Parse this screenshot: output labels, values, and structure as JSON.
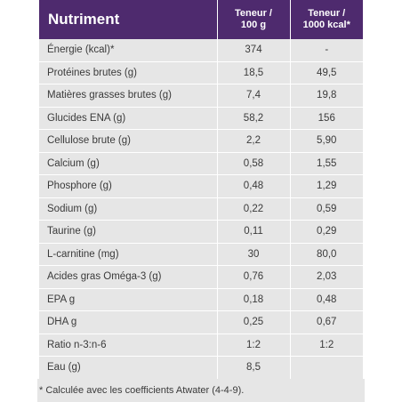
{
  "table": {
    "headers": {
      "nutrient": "Nutriment",
      "per100g_line1": "Teneur /",
      "per100g_line2": "100 g",
      "per1000_line1": "Teneur /",
      "per1000_line2": "1000 kcal*"
    },
    "rows": [
      {
        "name": "Énergie (kcal)*",
        "per100g": "374",
        "per1000kcal": "-"
      },
      {
        "name": "Protéines brutes (g)",
        "per100g": "18,5",
        "per1000kcal": "49,5"
      },
      {
        "name": "Matières grasses brutes (g)",
        "per100g": "7,4",
        "per1000kcal": "19,8"
      },
      {
        "name": "Glucides ENA (g)",
        "per100g": "58,2",
        "per1000kcal": "156"
      },
      {
        "name": "Cellulose brute (g)",
        "per100g": "2,2",
        "per1000kcal": "5,90"
      },
      {
        "name": "Calcium (g)",
        "per100g": "0,58",
        "per1000kcal": "1,55"
      },
      {
        "name": "Phosphore (g)",
        "per100g": "0,48",
        "per1000kcal": "1,29"
      },
      {
        "name": "Sodium (g)",
        "per100g": "0,22",
        "per1000kcal": "0,59"
      },
      {
        "name": "Taurine (g)",
        "per100g": "0,11",
        "per1000kcal": "0,29"
      },
      {
        "name": "L-carnitine (mg)",
        "per100g": "30",
        "per1000kcal": "80,0"
      },
      {
        "name": "Acides gras Oméga-3 (g)",
        "per100g": "0,76",
        "per1000kcal": "2,03"
      },
      {
        "name": "EPA  g",
        "per100g": "0,18",
        "per1000kcal": "0,48"
      },
      {
        "name": "DHA  g",
        "per100g": "0,25",
        "per1000kcal": "0,67"
      },
      {
        "name": "Ratio n-3:n-6",
        "per100g": "1:2",
        "per1000kcal": "1:2"
      },
      {
        "name": "Eau (g)",
        "per100g": "8,5",
        "per1000kcal": ""
      }
    ]
  },
  "footnote": "* Calculée avec les coefficients Atwater (4-4-9).",
  "colors": {
    "header_bg": "#4e2a6e",
    "row_bg": "#e6e6e6"
  }
}
